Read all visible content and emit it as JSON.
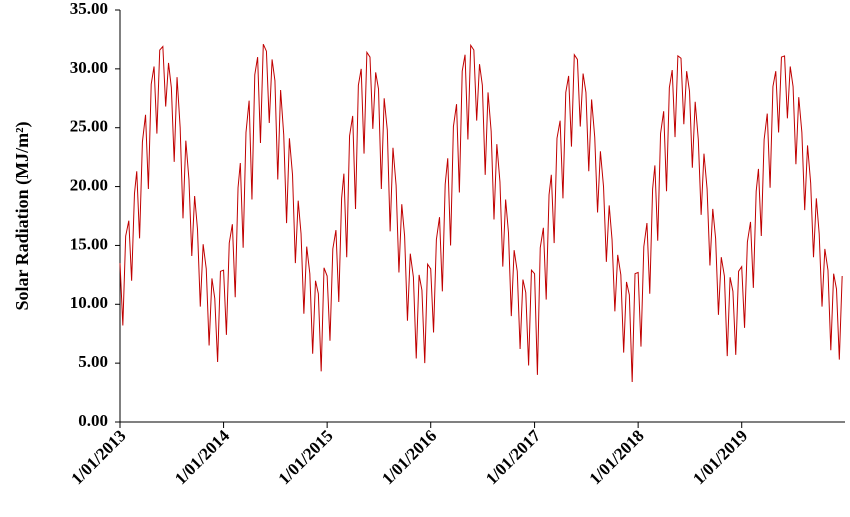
{
  "chart_data": {
    "type": "line",
    "y_label": "Solar Radiation  (MJ/m²)",
    "color": "#c00000",
    "x": [
      "2013-01-01",
      "2013-01-11",
      "2013-01-21",
      "2013-02-01",
      "2013-02-11",
      "2013-02-21",
      "2013-03-01",
      "2013-03-11",
      "2013-03-21",
      "2013-04-01",
      "2013-04-11",
      "2013-04-21",
      "2013-05-01",
      "2013-05-11",
      "2013-05-21",
      "2013-06-01",
      "2013-06-11",
      "2013-06-21",
      "2013-07-01",
      "2013-07-11",
      "2013-07-21",
      "2013-08-01",
      "2013-08-11",
      "2013-08-21",
      "2013-09-01",
      "2013-09-11",
      "2013-09-21",
      "2013-10-01",
      "2013-10-11",
      "2013-10-21",
      "2013-11-01",
      "2013-11-11",
      "2013-11-21",
      "2013-12-01",
      "2013-12-11",
      "2013-12-21",
      "2014-01-01",
      "2014-01-11",
      "2014-01-21",
      "2014-02-01",
      "2014-02-11",
      "2014-02-21",
      "2014-03-01",
      "2014-03-11",
      "2014-03-21",
      "2014-04-01",
      "2014-04-11",
      "2014-04-21",
      "2014-05-01",
      "2014-05-11",
      "2014-05-21",
      "2014-06-01",
      "2014-06-11",
      "2014-06-21",
      "2014-07-01",
      "2014-07-11",
      "2014-07-21",
      "2014-08-01",
      "2014-08-11",
      "2014-08-21",
      "2014-09-01",
      "2014-09-11",
      "2014-09-21",
      "2014-10-01",
      "2014-10-11",
      "2014-10-21",
      "2014-11-01",
      "2014-11-11",
      "2014-11-21",
      "2014-12-01",
      "2014-12-11",
      "2014-12-21",
      "2015-01-01",
      "2015-01-11",
      "2015-01-21",
      "2015-02-01",
      "2015-02-11",
      "2015-02-21",
      "2015-03-01",
      "2015-03-11",
      "2015-03-21",
      "2015-04-01",
      "2015-04-11",
      "2015-04-21",
      "2015-05-01",
      "2015-05-11",
      "2015-05-21",
      "2015-06-01",
      "2015-06-11",
      "2015-06-21",
      "2015-07-01",
      "2015-07-11",
      "2015-07-21",
      "2015-08-01",
      "2015-08-11",
      "2015-08-21",
      "2015-09-01",
      "2015-09-11",
      "2015-09-21",
      "2015-10-01",
      "2015-10-11",
      "2015-10-21",
      "2015-11-01",
      "2015-11-11",
      "2015-11-21",
      "2015-12-01",
      "2015-12-11",
      "2015-12-21",
      "2016-01-01",
      "2016-01-11",
      "2016-01-21",
      "2016-02-01",
      "2016-02-11",
      "2016-02-21",
      "2016-03-01",
      "2016-03-11",
      "2016-03-21",
      "2016-04-01",
      "2016-04-11",
      "2016-04-21",
      "2016-05-01",
      "2016-05-11",
      "2016-05-21",
      "2016-06-01",
      "2016-06-11",
      "2016-06-21",
      "2016-07-01",
      "2016-07-11",
      "2016-07-21",
      "2016-08-01",
      "2016-08-11",
      "2016-08-21",
      "2016-09-01",
      "2016-09-11",
      "2016-09-21",
      "2016-10-01",
      "2016-10-11",
      "2016-10-21",
      "2016-11-01",
      "2016-11-11",
      "2016-11-21",
      "2016-12-01",
      "2016-12-11",
      "2016-12-21",
      "2017-01-01",
      "2017-01-11",
      "2017-01-21",
      "2017-02-01",
      "2017-02-11",
      "2017-02-21",
      "2017-03-01",
      "2017-03-11",
      "2017-03-21",
      "2017-04-01",
      "2017-04-11",
      "2017-04-21",
      "2017-05-01",
      "2017-05-11",
      "2017-05-21",
      "2017-06-01",
      "2017-06-11",
      "2017-06-21",
      "2017-07-01",
      "2017-07-11",
      "2017-07-21",
      "2017-08-01",
      "2017-08-11",
      "2017-08-21",
      "2017-09-01",
      "2017-09-11",
      "2017-09-21",
      "2017-10-01",
      "2017-10-11",
      "2017-10-21",
      "2017-11-01",
      "2017-11-11",
      "2017-11-21",
      "2017-12-01",
      "2017-12-11",
      "2017-12-21",
      "2018-01-01",
      "2018-01-11",
      "2018-01-21",
      "2018-02-01",
      "2018-02-11",
      "2018-02-21",
      "2018-03-01",
      "2018-03-11",
      "2018-03-21",
      "2018-04-01",
      "2018-04-11",
      "2018-04-21",
      "2018-05-01",
      "2018-05-11",
      "2018-05-21",
      "2018-06-01",
      "2018-06-11",
      "2018-06-21",
      "2018-07-01",
      "2018-07-11",
      "2018-07-21",
      "2018-08-01",
      "2018-08-11",
      "2018-08-21",
      "2018-09-01",
      "2018-09-11",
      "2018-09-21",
      "2018-10-01",
      "2018-10-11",
      "2018-10-21",
      "2018-11-01",
      "2018-11-11",
      "2018-11-21",
      "2018-12-01",
      "2018-12-11",
      "2018-12-21",
      "2019-01-01",
      "2019-01-11",
      "2019-01-21",
      "2019-02-01",
      "2019-02-11",
      "2019-02-21",
      "2019-03-01",
      "2019-03-11",
      "2019-03-21",
      "2019-04-01",
      "2019-04-11",
      "2019-04-21",
      "2019-05-01",
      "2019-05-11",
      "2019-05-21",
      "2019-06-01",
      "2019-06-11",
      "2019-06-21",
      "2019-07-01",
      "2019-07-11",
      "2019-07-21",
      "2019-08-01",
      "2019-08-11",
      "2019-08-21",
      "2019-09-01",
      "2019-09-11",
      "2019-09-21",
      "2019-10-01",
      "2019-10-11",
      "2019-10-21",
      "2019-11-01",
      "2019-11-11",
      "2019-11-21",
      "2019-12-01",
      "2019-12-11",
      "2019-12-21"
    ],
    "values": [
      13.5,
      8.2,
      15.8,
      17.1,
      12.0,
      19.4,
      21.3,
      15.6,
      23.8,
      26.1,
      19.8,
      28.7,
      30.2,
      24.5,
      31.6,
      31.9,
      26.8,
      30.5,
      28.4,
      22.1,
      29.3,
      25.0,
      17.3,
      23.9,
      20.6,
      14.1,
      19.2,
      16.4,
      9.8,
      15.1,
      13.0,
      6.5,
      12.2,
      10.5,
      5.1,
      12.8,
      12.9,
      7.4,
      15.2,
      16.8,
      10.6,
      19.9,
      22.0,
      14.8,
      24.6,
      27.3,
      18.9,
      29.5,
      31.0,
      23.7,
      32.1,
      31.5,
      25.4,
      30.8,
      29.0,
      20.6,
      28.2,
      24.4,
      16.9,
      24.1,
      21.0,
      13.5,
      18.8,
      16.0,
      9.2,
      14.9,
      12.6,
      5.8,
      12.0,
      10.9,
      4.3,
      13.1,
      12.4,
      6.9,
      14.7,
      16.3,
      10.2,
      19.0,
      21.1,
      14.0,
      24.3,
      26.0,
      18.1,
      28.6,
      30.0,
      22.8,
      31.4,
      31.0,
      24.9,
      29.7,
      28.3,
      19.8,
      27.5,
      24.8,
      16.2,
      23.3,
      20.1,
      12.7,
      18.5,
      15.8,
      8.6,
      14.3,
      12.3,
      5.4,
      12.5,
      11.2,
      5.0,
      13.4,
      13.0,
      7.6,
      15.5,
      17.4,
      11.1,
      20.2,
      22.4,
      15.0,
      25.1,
      27.0,
      19.5,
      29.8,
      31.2,
      24.0,
      32.0,
      31.6,
      25.6,
      30.4,
      28.6,
      21.0,
      28.0,
      24.7,
      17.2,
      23.6,
      20.4,
      13.2,
      18.9,
      16.1,
      9.0,
      14.6,
      12.8,
      6.2,
      12.1,
      11.0,
      4.8,
      12.9,
      12.6,
      4.0,
      14.8,
      16.5,
      10.4,
      19.3,
      21.0,
      15.2,
      24.1,
      25.6,
      19.0,
      28.0,
      29.4,
      23.4,
      31.2,
      30.8,
      25.1,
      29.6,
      28.0,
      21.3,
      27.4,
      24.2,
      17.8,
      23.0,
      20.0,
      13.6,
      18.4,
      15.5,
      9.4,
      14.2,
      12.5,
      5.9,
      11.9,
      10.8,
      3.4,
      12.6,
      12.7,
      6.4,
      14.9,
      16.9,
      10.9,
      19.8,
      21.8,
      15.4,
      24.5,
      26.4,
      19.6,
      28.4,
      29.9,
      24.2,
      31.1,
      30.9,
      25.3,
      29.8,
      28.1,
      21.6,
      27.2,
      24.0,
      17.6,
      22.8,
      19.8,
      13.3,
      18.1,
      15.6,
      9.1,
      14.0,
      12.4,
      5.6,
      12.3,
      11.1,
      5.7,
      12.8,
      13.2,
      8.0,
      15.3,
      17.0,
      11.4,
      19.6,
      21.5,
      15.8,
      24.0,
      26.2,
      19.9,
      28.5,
      29.8,
      24.6,
      31.0,
      31.1,
      25.8,
      30.2,
      28.5,
      21.9,
      27.6,
      24.6,
      18.0,
      23.5,
      20.3,
      14.0,
      19.0,
      16.0,
      9.8,
      14.7,
      12.9,
      6.1,
      12.6,
      11.3,
      5.3,
      12.4
    ],
    "xlim": [
      "2013-01-01",
      "2019-12-31"
    ],
    "xticks": [
      {
        "value": "2013-01-01",
        "label": "1/01/2013"
      },
      {
        "value": "2014-01-01",
        "label": "1/01/2014"
      },
      {
        "value": "2015-01-01",
        "label": "1/01/2015"
      },
      {
        "value": "2016-01-01",
        "label": "1/01/2016"
      },
      {
        "value": "2017-01-01",
        "label": "1/01/2017"
      },
      {
        "value": "2018-01-01",
        "label": "1/01/2018"
      },
      {
        "value": "2019-01-01",
        "label": "1/01/2019"
      }
    ],
    "ylim": [
      0,
      35
    ],
    "yticks": [
      {
        "value": 0,
        "label": "0.00"
      },
      {
        "value": 5,
        "label": "5.00"
      },
      {
        "value": 10,
        "label": "10.00"
      },
      {
        "value": 15,
        "label": "15.00"
      },
      {
        "value": 20,
        "label": "20.00"
      },
      {
        "value": 25,
        "label": "25.00"
      },
      {
        "value": 30,
        "label": "30.00"
      },
      {
        "value": 35,
        "label": "35.00"
      }
    ]
  }
}
